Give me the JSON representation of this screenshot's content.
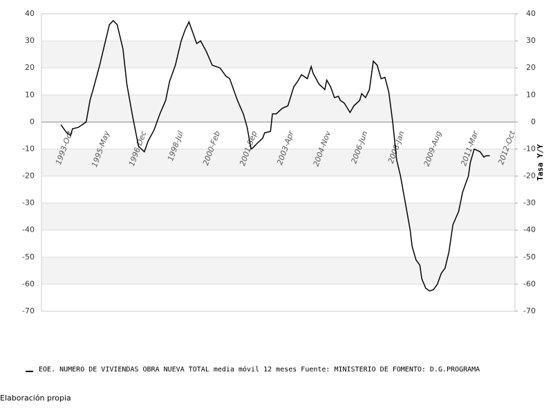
{
  "chart_data": {
    "type": "line",
    "y2label": "Tasa Y/Y",
    "footer": "Elaboración propia",
    "ylim": [
      -70,
      40
    ],
    "yticks": [
      -70,
      -60,
      -50,
      -40,
      -30,
      -20,
      -10,
      0,
      10,
      20,
      30,
      40
    ],
    "y2lim": [
      -70,
      40
    ],
    "y2ticks": [
      -70,
      -60,
      -50,
      -40,
      -30,
      -20,
      -10,
      0,
      10,
      20,
      30,
      40
    ],
    "xlim": [
      "1992-07",
      "2012-11"
    ],
    "xticks": [
      {
        "value": "1993-10",
        "label": "1993-Oct"
      },
      {
        "value": "1995-05",
        "label": "1995-May"
      },
      {
        "value": "1996-12",
        "label": "1996-Dec"
      },
      {
        "value": "1998-07",
        "label": "1998-Jul"
      },
      {
        "value": "2000-02",
        "label": "2000-Feb"
      },
      {
        "value": "2001-09",
        "label": "2001-Sep"
      },
      {
        "value": "2003-04",
        "label": "2003-Apr"
      },
      {
        "value": "2004-11",
        "label": "2004-Nov"
      },
      {
        "value": "2006-06",
        "label": "2006-Jun"
      },
      {
        "value": "2008-01",
        "label": "2008-Jan"
      },
      {
        "value": "2009-08",
        "label": "2009-Aug"
      },
      {
        "value": "2011-03",
        "label": "2011-Mar"
      },
      {
        "value": "2012-10",
        "label": "2012-Oct"
      }
    ],
    "grid": true,
    "x": [
      "1993-05",
      "1993-08",
      "1993-10",
      "1993-11",
      "1994-02",
      "1994-06",
      "1994-08",
      "1994-10",
      "1995-01",
      "1995-03",
      "1995-06",
      "1995-08",
      "1995-10",
      "1996-01",
      "1996-03",
      "1996-06",
      "1996-09",
      "1996-12",
      "1997-02",
      "1997-05",
      "1997-08",
      "1997-11",
      "1998-01",
      "1998-04",
      "1998-07",
      "1998-09",
      "1998-11",
      "1999-01",
      "1999-03",
      "1999-05",
      "1999-08",
      "1999-11",
      "2000-01",
      "2000-03",
      "2000-06",
      "2000-08",
      "2000-10",
      "2000-12",
      "2001-03",
      "2001-05",
      "2001-07",
      "2001-08",
      "2001-10",
      "2002-01",
      "2002-02",
      "2002-05",
      "2002-06",
      "2002-08",
      "2002-11",
      "2003-02",
      "2003-05",
      "2003-07",
      "2003-09",
      "2003-12",
      "2004-02",
      "2004-03",
      "2004-06",
      "2004-09",
      "2004-10",
      "2004-12",
      "2005-02",
      "2005-04",
      "2005-05",
      "2005-07",
      "2005-10",
      "2005-12",
      "2006-03",
      "2006-04",
      "2006-06",
      "2006-08",
      "2006-10",
      "2006-12",
      "2007-02",
      "2007-04",
      "2007-06",
      "2007-08",
      "2007-10",
      "2007-12",
      "2008-02",
      "2008-05",
      "2008-06",
      "2008-08",
      "2008-10",
      "2008-11",
      "2009-01",
      "2009-03",
      "2009-05",
      "2009-07",
      "2009-09",
      "2009-11",
      "2010-01",
      "2010-03",
      "2010-06",
      "2010-08",
      "2010-11",
      "2010-12",
      "2011-02",
      "2011-05",
      "2011-07",
      "2011-08",
      "2011-10"
    ],
    "series": [
      {
        "name": "EOE. NUMERO DE VIVIENDAS OBRA NUEVA TOTAL media móvil 12 meses  Fuente: MINISTERIO DE FOMENTO: D.G.PROGRAMA",
        "color": "#000000",
        "values": [
          -1,
          -4,
          -5,
          -2.5,
          -2,
          0,
          8,
          13,
          21,
          27,
          36,
          37.5,
          36,
          27,
          14,
          2,
          -9,
          -11,
          -7,
          -3,
          3,
          8,
          15,
          21,
          30,
          34,
          37,
          33,
          29,
          30,
          26,
          21,
          20.5,
          20,
          17,
          16,
          12,
          8,
          3,
          -2,
          -10,
          -9.5,
          -8,
          -6,
          -4,
          -3.5,
          3,
          3,
          5,
          6,
          13,
          15,
          17.5,
          16,
          20.5,
          18,
          14,
          12,
          15.5,
          13,
          9,
          9.5,
          8,
          7,
          3.5,
          6,
          8,
          10.5,
          9,
          12,
          22.5,
          21,
          16,
          16.5,
          11,
          0,
          -14,
          -20,
          -28,
          -40,
          -46,
          -51,
          -53,
          -58,
          -61.5,
          -62.5,
          -62,
          -60,
          -56,
          -54,
          -48,
          -38,
          -33,
          -26,
          -20,
          -15,
          -10,
          -11,
          -13,
          -12.5,
          -12.5
        ]
      }
    ]
  }
}
